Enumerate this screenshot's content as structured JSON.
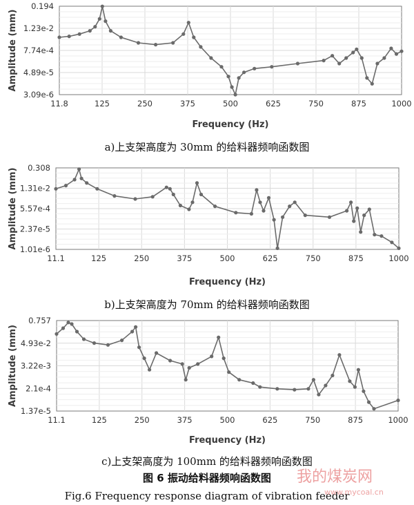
{
  "chart_data": [
    {
      "type": "line",
      "xlabel": "Frequency (Hz)",
      "ylabel": "Amplitude (mm)",
      "y_scale": "log",
      "caption": "a)上支架高度为 30mm 的给料器频响函数图",
      "x_ticks": [
        "11.8",
        "125",
        "250",
        "375",
        "500",
        "625",
        "750",
        "875",
        "1000"
      ],
      "y_ticks": [
        "0.194",
        "1.23e-2",
        "7.74e-4",
        "4.89e-5",
        "3.09e-6"
      ],
      "xlim": [
        11.8,
        1000
      ],
      "ylim": [
        3.09e-06,
        0.194
      ],
      "series": [
        {
          "x": [
            11.8,
            40,
            70,
            100,
            115,
            128,
            136,
            145,
            160,
            190,
            240,
            290,
            340,
            370,
            385,
            400,
            420,
            450,
            480,
            500,
            510,
            520,
            530,
            545,
            575,
            625,
            700,
            775,
            800,
            820,
            840,
            860,
            870,
            885,
            900,
            915,
            930,
            950,
            970,
            985,
            1000
          ],
          "y": [
            0.004,
            0.0045,
            0.006,
            0.009,
            0.015,
            0.04,
            0.19,
            0.03,
            0.009,
            0.004,
            0.002,
            0.0016,
            0.002,
            0.006,
            0.025,
            0.004,
            0.0012,
            0.0003,
            0.0001,
            3e-05,
            8e-06,
            3e-06,
            2.5e-05,
            5e-05,
            8e-05,
            0.0001,
            0.00015,
            0.00022,
            0.0004,
            0.00015,
            0.0003,
            0.0006,
            0.0009,
            0.0003,
            2.5e-05,
            1.2e-05,
            0.00015,
            0.0003,
            0.001,
            0.0005,
            0.0007
          ]
        }
      ]
    },
    {
      "type": "line",
      "xlabel": "Frequency (Hz)",
      "ylabel": "Amplitude (mm)",
      "y_scale": "log",
      "caption": "b)上支架高度为 70mm 的给料器频响函数图",
      "x_ticks": [
        "11.1",
        "125",
        "250",
        "375",
        "500",
        "625",
        "750",
        "875",
        "1000"
      ],
      "y_ticks": [
        "0.308",
        "1.31e-2",
        "5.57e-4",
        "2.37e-5",
        "1.01e-6"
      ],
      "xlim": [
        11.1,
        1000
      ],
      "ylim": [
        1.01e-06,
        0.308
      ],
      "series": [
        {
          "x": [
            11.1,
            40,
            65,
            78,
            85,
            100,
            130,
            180,
            240,
            290,
            330,
            340,
            350,
            370,
            395,
            405,
            418,
            430,
            470,
            530,
            575,
            590,
            600,
            610,
            625,
            640,
            650,
            665,
            685,
            700,
            730,
            800,
            850,
            862,
            870,
            880,
            890,
            900,
            915,
            930,
            950,
            980,
            1000
          ],
          "y": [
            0.012,
            0.02,
            0.05,
            0.25,
            0.06,
            0.03,
            0.012,
            0.004,
            0.0025,
            0.0035,
            0.015,
            0.012,
            0.005,
            0.0009,
            0.0005,
            0.0015,
            0.03,
            0.005,
            0.0008,
            0.0003,
            0.00025,
            0.01,
            0.0015,
            0.0004,
            0.003,
            0.0001,
            1.2e-06,
            0.00015,
            0.0008,
            0.0015,
            0.0002,
            0.00015,
            0.0004,
            0.0015,
            8e-05,
            0.0006,
            1.5e-05,
            0.0002,
            0.0005,
            1e-05,
            8e-06,
            3e-06,
            1.2e-06
          ]
        }
      ]
    },
    {
      "type": "line",
      "xlabel": "Frequency (Hz)",
      "ylabel": "Amplitude (mm)",
      "y_scale": "log",
      "caption": "c)上支架高度为 100mm 的给料器频响函数图",
      "x_ticks": [
        "11.1",
        "125",
        "250",
        "375",
        "500",
        "625",
        "750",
        "875",
        "1000"
      ],
      "y_ticks": [
        "0.757",
        "4.93e-2",
        "3.22e-3",
        "2.1e-4",
        "1.37e-5"
      ],
      "xlim": [
        11.1,
        1000
      ],
      "ylim": [
        1.37e-05,
        0.757
      ],
      "series": [
        {
          "x": [
            11.1,
            30,
            45,
            55,
            70,
            90,
            120,
            160,
            200,
            230,
            240,
            250,
            265,
            280,
            300,
            340,
            375,
            385,
            395,
            420,
            460,
            480,
            495,
            510,
            540,
            580,
            600,
            650,
            700,
            740,
            755,
            770,
            790,
            810,
            830,
            860,
            875,
            885,
            900,
            915,
            930,
            1000
          ],
          "y": [
            0.15,
            0.3,
            0.6,
            0.5,
            0.2,
            0.08,
            0.05,
            0.04,
            0.07,
            0.2,
            0.35,
            0.03,
            0.008,
            0.002,
            0.015,
            0.006,
            0.004,
            0.0006,
            0.0025,
            0.004,
            0.01,
            0.1,
            0.008,
            0.0015,
            0.0006,
            0.0004,
            0.00025,
            0.0002,
            0.00018,
            0.0002,
            0.0006,
            0.0001,
            0.0003,
            0.001,
            0.012,
            0.0005,
            0.00025,
            0.002,
            0.00015,
            4e-05,
            1.8e-05,
            5e-05
          ]
        }
      ]
    }
  ],
  "figure_caption_cn": "图 6 振动给料器频响函数图",
  "figure_caption_en": "Fig.6 Frequency response diagram of vibration feeder",
  "watermark": {
    "big": "我的煤炭网",
    "small": "www.mycoal.cn"
  },
  "colors": {
    "series": "#6a6a6a",
    "grid": "#d9d9d9",
    "axis": "#7a7a7a"
  }
}
